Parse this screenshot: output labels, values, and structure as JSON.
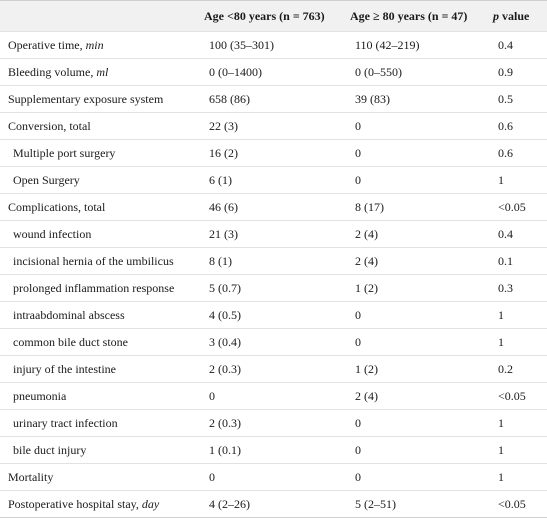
{
  "header": {
    "col1": "",
    "col2": "Age <80 years (n = 763)",
    "col3": "Age ≥ 80 years (n = 47)",
    "col4_italic": "p",
    "col4_rest": " value"
  },
  "rows": [
    {
      "label": "Operative time, ",
      "unit": "min",
      "indent": false,
      "a": "100 (35–301)",
      "b": "110 (42–219)",
      "p": "0.4"
    },
    {
      "label": "Bleeding volume, ",
      "unit": "ml",
      "indent": false,
      "a": "0 (0–1400)",
      "b": "0 (0–550)",
      "p": "0.9"
    },
    {
      "label": "Supplementary exposure system",
      "unit": "",
      "indent": false,
      "a": "658 (86)",
      "b": "39 (83)",
      "p": "0.5"
    },
    {
      "label": "Conversion, total",
      "unit": "",
      "indent": false,
      "a": "22 (3)",
      "b": "0",
      "p": "0.6"
    },
    {
      "label": "Multiple port surgery",
      "unit": "",
      "indent": true,
      "a": "16 (2)",
      "b": "0",
      "p": "0.6"
    },
    {
      "label": "Open Surgery",
      "unit": "",
      "indent": true,
      "a": "6 (1)",
      "b": "0",
      "p": "1"
    },
    {
      "label": "Complications, total",
      "unit": "",
      "indent": false,
      "a": "46 (6)",
      "b": "8 (17)",
      "p": "<0.05"
    },
    {
      "label": "wound infection",
      "unit": "",
      "indent": true,
      "a": "21 (3)",
      "b": "2 (4)",
      "p": "0.4"
    },
    {
      "label": "incisional hernia of the umbilicus",
      "unit": "",
      "indent": true,
      "a": "8 (1)",
      "b": "2 (4)",
      "p": "0.1"
    },
    {
      "label": "prolonged inflammation response",
      "unit": "",
      "indent": true,
      "a": "5 (0.7)",
      "b": "1 (2)",
      "p": "0.3"
    },
    {
      "label": "intraabdominal abscess",
      "unit": "",
      "indent": true,
      "a": "4 (0.5)",
      "b": "0",
      "p": "1"
    },
    {
      "label": "common bile duct stone",
      "unit": "",
      "indent": true,
      "a": "3 (0.4)",
      "b": "0",
      "p": "1"
    },
    {
      "label": "injury of the intestine",
      "unit": "",
      "indent": true,
      "a": "2 (0.3)",
      "b": "1 (2)",
      "p": "0.2"
    },
    {
      "label": "pneumonia",
      "unit": "",
      "indent": true,
      "a": "0",
      "b": "2 (4)",
      "p": "<0.05"
    },
    {
      "label": "urinary tract infection",
      "unit": "",
      "indent": true,
      "a": "2 (0.3)",
      "b": "0",
      "p": "1"
    },
    {
      "label": "bile duct injury",
      "unit": "",
      "indent": true,
      "a": "1 (0.1)",
      "b": "0",
      "p": "1"
    },
    {
      "label": "Mortality",
      "unit": "",
      "indent": false,
      "a": "0",
      "b": "0",
      "p": "1"
    },
    {
      "label": "Postoperative hospital stay, ",
      "unit": "day",
      "indent": false,
      "a": "4 (2–26)",
      "b": "5 (2–51)",
      "p": "<0.05"
    }
  ]
}
